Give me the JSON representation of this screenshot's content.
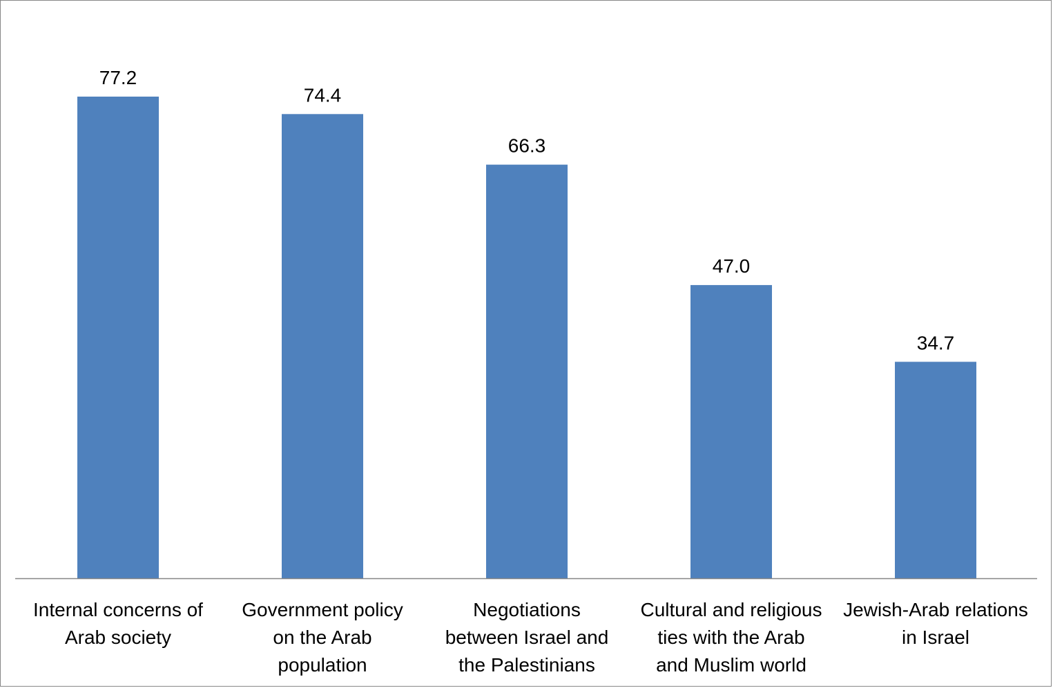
{
  "chart_data": {
    "type": "bar",
    "categories": [
      [
        "Internal concerns of",
        "Arab society"
      ],
      [
        "Government policy",
        "on the Arab",
        "population"
      ],
      [
        "Negotiations",
        "between Israel and",
        "the Palestinians"
      ],
      [
        "Cultural and religious",
        "ties with the Arab",
        "and Muslim world"
      ],
      [
        "Jewish-Arab relations",
        "in Israel"
      ]
    ],
    "values": [
      77.2,
      74.4,
      66.3,
      47.0,
      34.7
    ],
    "data_labels": [
      "77.2",
      "74.4",
      "66.3",
      "47.0",
      "34.7"
    ],
    "title": "",
    "xlabel": "",
    "ylabel": "",
    "ylim": [
      0,
      90
    ],
    "grid": false,
    "legend": "none",
    "bar_color": "#4F81BD",
    "axis_color": "#868686"
  }
}
